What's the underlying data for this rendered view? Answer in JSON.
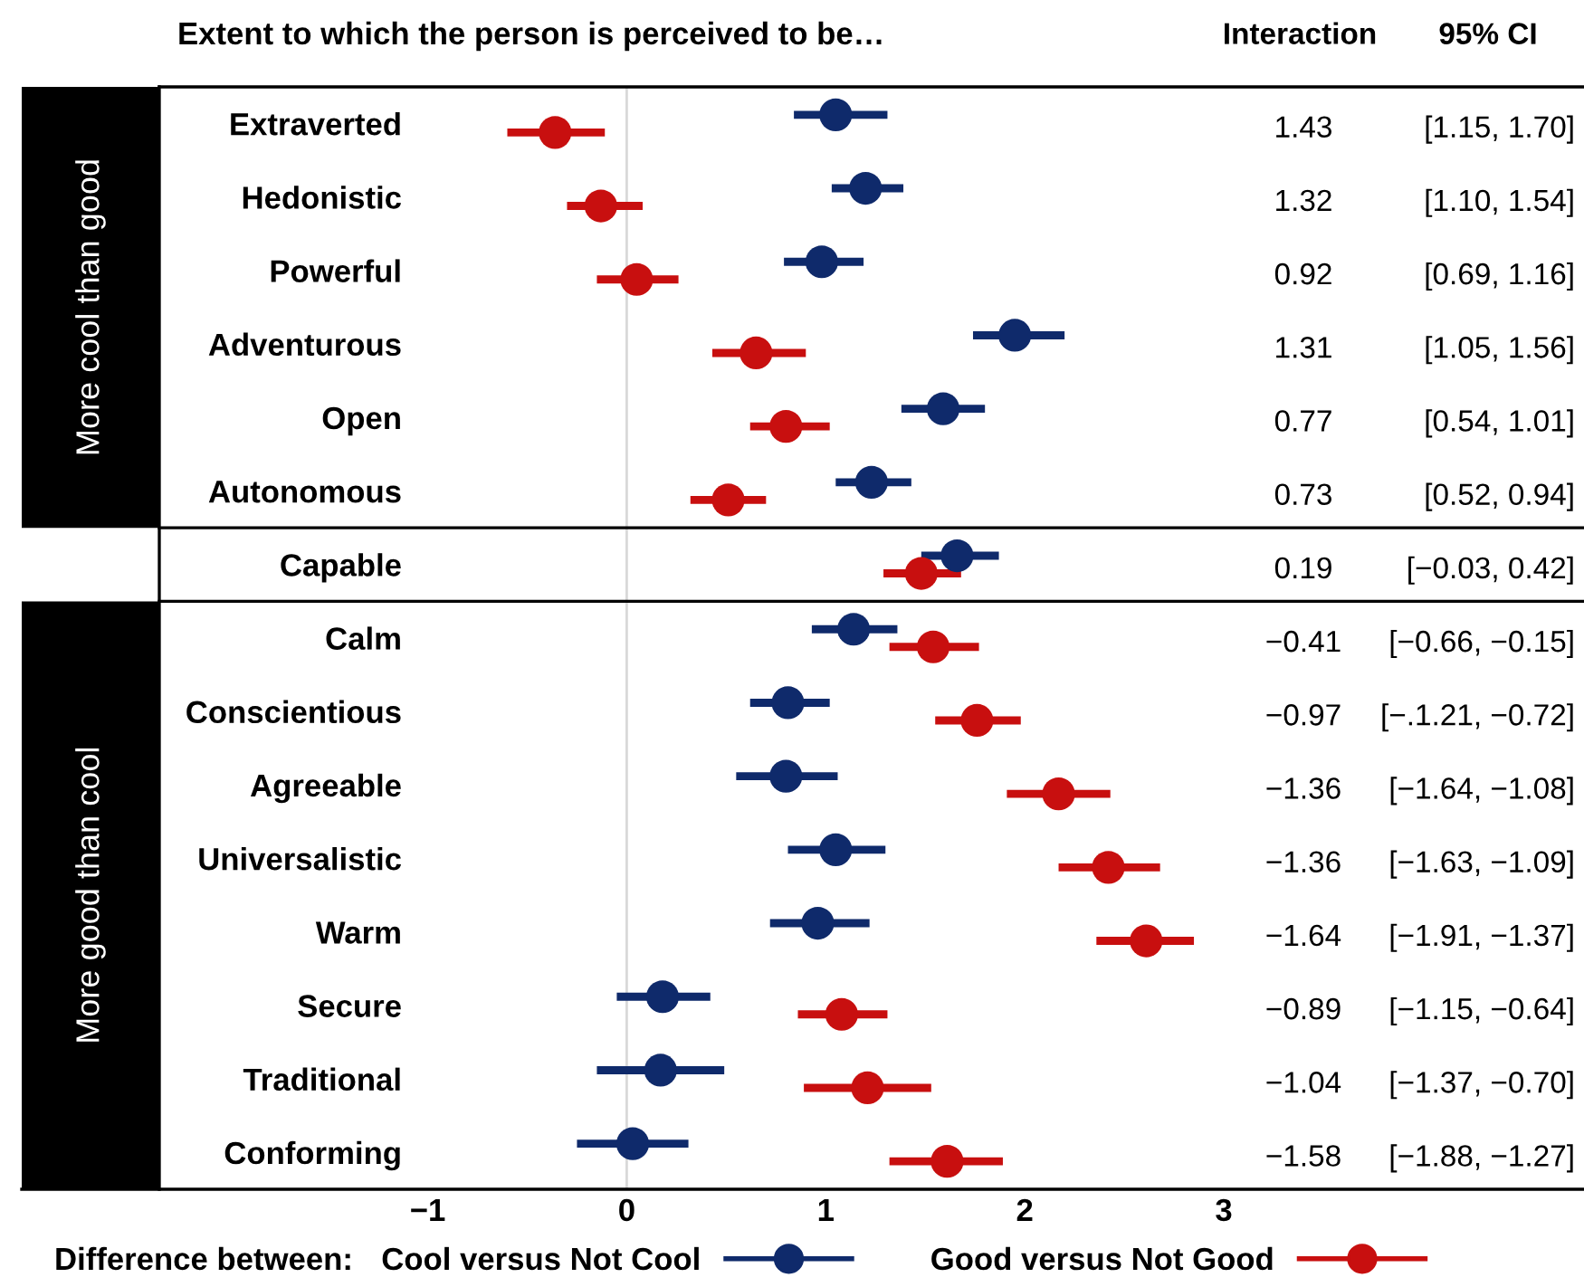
{
  "chart_data": {
    "type": "scatter",
    "orientation": "horizontal",
    "title": "Extent to which the person is perceived to be…",
    "legend_title": "Difference between:",
    "legend": "bottom",
    "marker": "circle",
    "grid": false,
    "categories": [
      "Extraverted",
      "Hedonistic",
      "Powerful",
      "Adventurous",
      "Open",
      "Autonomous",
      "Capable",
      "Calm",
      "Conscientious",
      "Agreeable",
      "Universalistic",
      "Warm",
      "Secure",
      "Traditional",
      "Conforming"
    ],
    "xlim": [
      -3.04,
      4.81
    ],
    "xticks": [
      {
        "value": -1,
        "label": "−1"
      },
      0,
      1,
      2,
      3
    ],
    "series": [
      {
        "name": "Cool versus Not Cool",
        "color": "#0f2a6b",
        "values": [
          1.05,
          1.2,
          0.98,
          1.95,
          1.59,
          1.23,
          1.66,
          1.14,
          0.81,
          0.8,
          1.05,
          0.96,
          0.18,
          0.17,
          0.03
        ],
        "errors": [
          [
            0.84,
            1.31
          ],
          [
            1.03,
            1.39
          ],
          [
            0.79,
            1.19
          ],
          [
            1.74,
            2.2
          ],
          [
            1.38,
            1.8
          ],
          [
            1.05,
            1.43
          ],
          [
            1.48,
            1.87
          ],
          [
            0.93,
            1.36
          ],
          [
            0.62,
            1.02
          ],
          [
            0.55,
            1.06
          ],
          [
            0.81,
            1.3
          ],
          [
            0.72,
            1.22
          ],
          [
            -0.05,
            0.42
          ],
          [
            -0.15,
            0.49
          ],
          [
            -0.25,
            0.31
          ]
        ]
      },
      {
        "name": "Good versus Not Good",
        "color": "#c80f0f",
        "values": [
          -0.36,
          -0.13,
          0.05,
          0.65,
          0.8,
          0.51,
          1.48,
          1.54,
          1.76,
          2.17,
          2.42,
          2.61,
          1.08,
          1.21,
          1.61
        ],
        "errors": [
          [
            -0.6,
            -0.11
          ],
          [
            -0.3,
            0.08
          ],
          [
            -0.15,
            0.26
          ],
          [
            0.43,
            0.9
          ],
          [
            0.62,
            1.02
          ],
          [
            0.32,
            0.7
          ],
          [
            1.29,
            1.68
          ],
          [
            1.32,
            1.77
          ],
          [
            1.55,
            1.98
          ],
          [
            1.91,
            2.43
          ],
          [
            2.17,
            2.68
          ],
          [
            2.36,
            2.85
          ],
          [
            0.86,
            1.31
          ],
          [
            0.89,
            1.53
          ],
          [
            1.32,
            1.89
          ]
        ]
      }
    ],
    "ref_lines": [
      {
        "axis": "x",
        "value": 0,
        "color": "#d9d9d9"
      }
    ],
    "bands": [
      {
        "axis": "y",
        "from": "Extraverted",
        "to": "Autonomous",
        "label": "More cool than good",
        "color": "#000000"
      },
      {
        "axis": "y",
        "from": "Calm",
        "to": "Conforming",
        "label": "More good than cool",
        "color": "#000000"
      }
    ],
    "annotations": [
      "Interaction",
      "95% CI",
      "1.43",
      "[1.15, 1.70]",
      "1.32",
      "[1.10, 1.54]",
      "0.92",
      "[0.69, 1.16]",
      "1.31",
      "[1.05, 1.56]",
      "0.77",
      "[0.54, 1.01]",
      "0.73",
      "[0.52, 0.94]",
      "0.19",
      "[−0.03, 0.42]",
      "−0.41",
      "[−0.66, −0.15]",
      "−0.97",
      "[−.1.21, −0.72]",
      "−1.36",
      "[−1.64, −1.08]",
      "−1.36",
      "[−1.63, −1.09]",
      "−1.64",
      "[−1.91, −1.37]",
      "−0.89",
      "[−1.15, −0.64]",
      "−1.04",
      "[−1.37, −0.70]",
      "−1.58",
      "[−1.88, −1.27]"
    ]
  }
}
